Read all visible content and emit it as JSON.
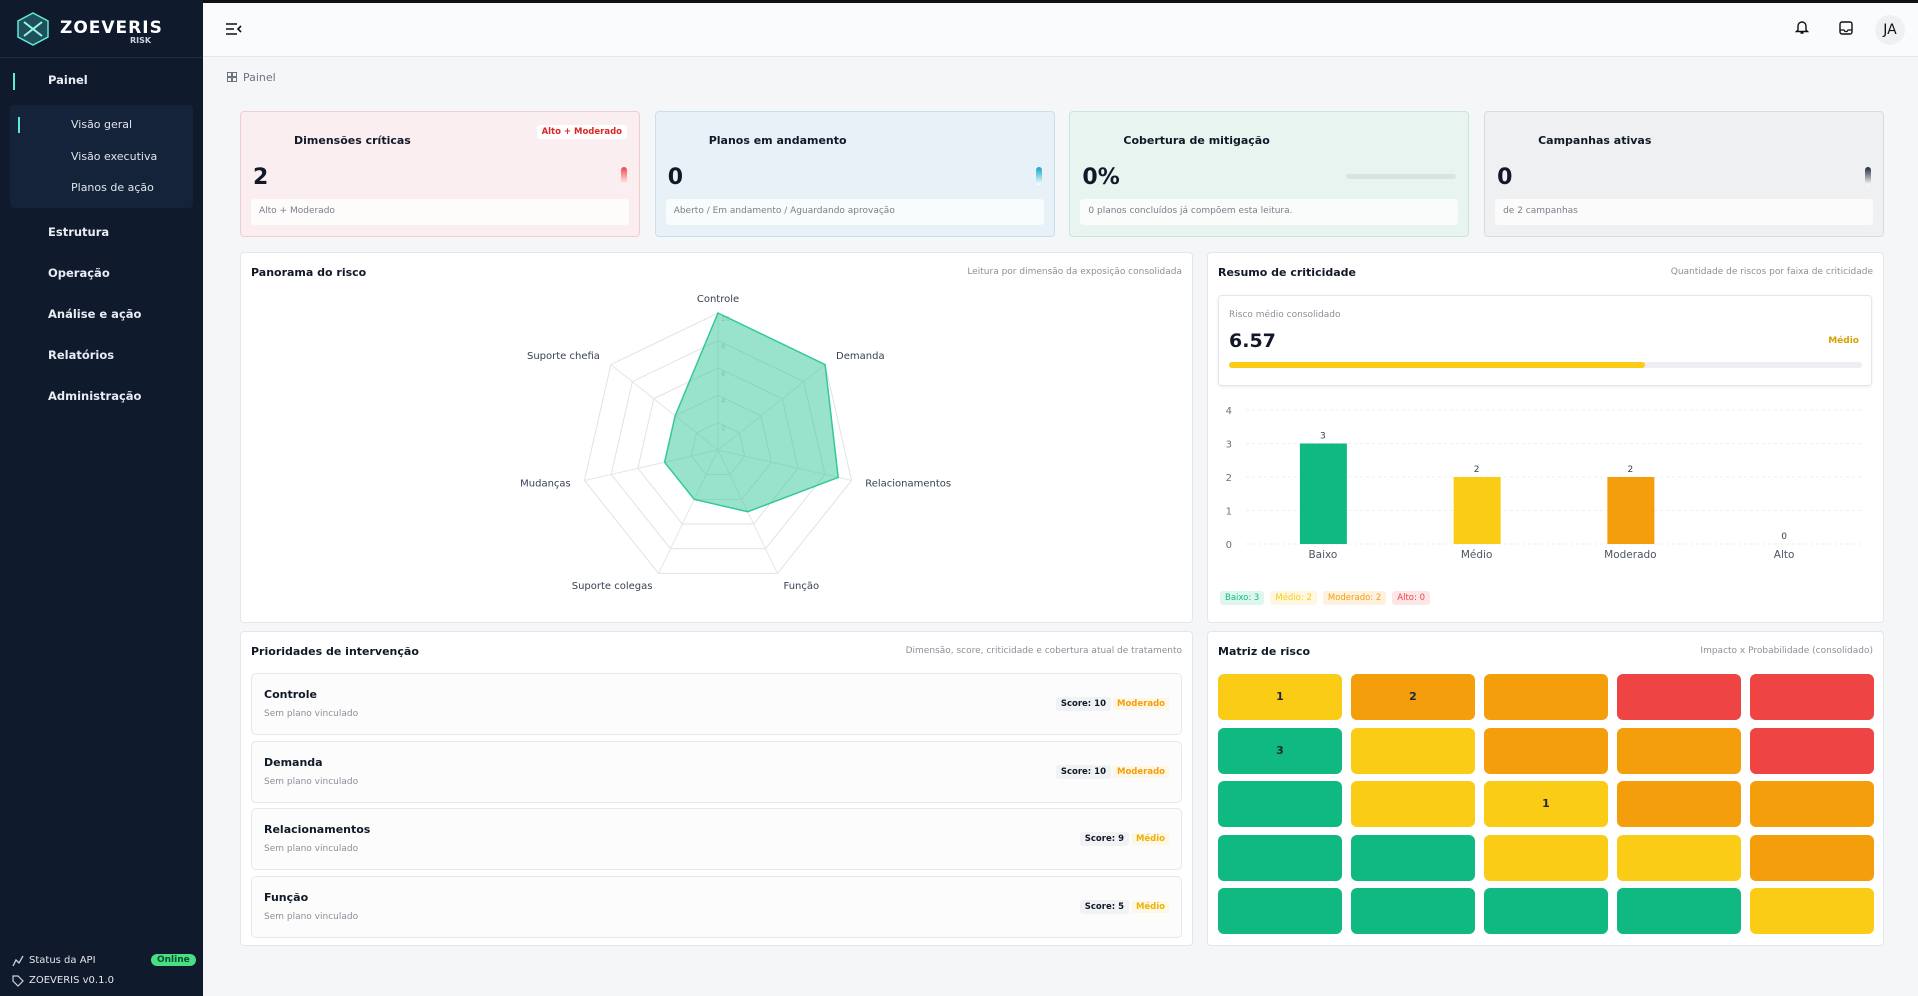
{
  "sidebar": {
    "brand": "ZOEVERIS",
    "brand_sub": "RISK",
    "nav": [
      {
        "label": "Painel",
        "children": [
          "Visão geral",
          "Visão executiva",
          "Planos de ação"
        ]
      },
      {
        "label": "Estrutura"
      },
      {
        "label": "Operação"
      },
      {
        "label": "Análise e ação"
      },
      {
        "label": "Relatórios"
      },
      {
        "label": "Administração"
      }
    ],
    "status_label": "Status da API",
    "status": "Online",
    "version": "ZOEVERIS v0.1.0"
  },
  "header": {
    "avatar": "JA"
  },
  "breadcrumb": "Painel",
  "cards": [
    {
      "title": "Dimensões críticas",
      "value": 2,
      "note": "Alto + Moderado",
      "badge": "Alto + Moderado",
      "color": "#ef4444"
    },
    {
      "title": "Planos em andamento",
      "value": 0,
      "note": "Aberto / Em andamento / Aguardando aprovação",
      "color": "#0ea5c6"
    },
    {
      "title": "Cobertura de mitigação",
      "value": "0%",
      "note": "0 planos concluídos já compõem esta leitura.",
      "color": "#10b981"
    },
    {
      "title": "Campanhas ativas",
      "value": 0,
      "note": "de 2 campanhas",
      "color": "#1e293b"
    }
  ],
  "radar": {
    "type": "radar",
    "title": "Panorama do risco",
    "subtitle": "Leitura por dimensão da exposição consolidada",
    "categories": [
      "Controle",
      "Demanda",
      "Relacionamentos",
      "Função",
      "Suporte colegas",
      "Mudanças",
      "Suporte chefia"
    ],
    "values": [
      10,
      10,
      9,
      5,
      4,
      4,
      4
    ],
    "color": "#34c79a",
    "rlim": [
      0,
      10
    ],
    "rticks": [
      2,
      4,
      6,
      8,
      10
    ]
  },
  "criticality": {
    "title": "Resumo de criticidade",
    "subtitle": "Quantidade de riscos por faixa de criticidade",
    "mean_label": "Risco médio consolidado",
    "mean": 6.57,
    "mean_level": "Médio",
    "chart": {
      "type": "bar",
      "categories": [
        "Baixo",
        "Médio",
        "Moderado",
        "Alto"
      ],
      "values": [
        3,
        2,
        2,
        0
      ],
      "colors": [
        "#10b981",
        "#facc15",
        "#f59e0b",
        "#ef4444"
      ],
      "ylim": [
        0,
        4
      ],
      "yticks": [
        0,
        1,
        2,
        3,
        4
      ],
      "grid": true
    },
    "chips": [
      "Baixo: 3",
      "Médio: 2",
      "Moderado: 2",
      "Alto: 0"
    ]
  },
  "priorities": {
    "title": "Prioridades de intervenção",
    "subtitle": "Dimensão, score, criticidade e cobertura atual de tratamento",
    "items": [
      {
        "name": "Controle",
        "note": "Sem plano vinculado",
        "score": "Score: 10",
        "level": "Moderado",
        "color": "#f59e0b"
      },
      {
        "name": "Demanda",
        "note": "Sem plano vinculado",
        "score": "Score: 10",
        "level": "Moderado",
        "color": "#f59e0b"
      },
      {
        "name": "Relacionamentos",
        "note": "Sem plano vinculado",
        "score": "Score: 9",
        "level": "Médio",
        "color": "#eab308"
      },
      {
        "name": "Função",
        "note": "Sem plano vinculado",
        "score": "Score: 5",
        "level": "Médio",
        "color": "#eab308"
      }
    ]
  },
  "matrix": {
    "title": "Matriz de risco",
    "subtitle": "Impacto x Probabilidade (consolidado)",
    "rows": [
      [
        {
          "color": "#facc15",
          "count": 1
        },
        {
          "color": "#f59e0b",
          "count": 2
        },
        {
          "color": "#f59e0b"
        },
        {
          "color": "#ef4444"
        },
        {
          "color": "#ef4444"
        }
      ],
      [
        {
          "color": "#10b981",
          "count": 3
        },
        {
          "color": "#facc15"
        },
        {
          "color": "#f59e0b"
        },
        {
          "color": "#f59e0b"
        },
        {
          "color": "#ef4444"
        }
      ],
      [
        {
          "color": "#10b981"
        },
        {
          "color": "#facc15"
        },
        {
          "color": "#facc15",
          "count": 1
        },
        {
          "color": "#f59e0b"
        },
        {
          "color": "#f59e0b"
        }
      ],
      [
        {
          "color": "#10b981"
        },
        {
          "color": "#10b981"
        },
        {
          "color": "#facc15"
        },
        {
          "color": "#facc15"
        },
        {
          "color": "#f59e0b"
        }
      ],
      [
        {
          "color": "#10b981"
        },
        {
          "color": "#10b981"
        },
        {
          "color": "#10b981"
        },
        {
          "color": "#10b981"
        },
        {
          "color": "#facc15"
        }
      ]
    ]
  }
}
